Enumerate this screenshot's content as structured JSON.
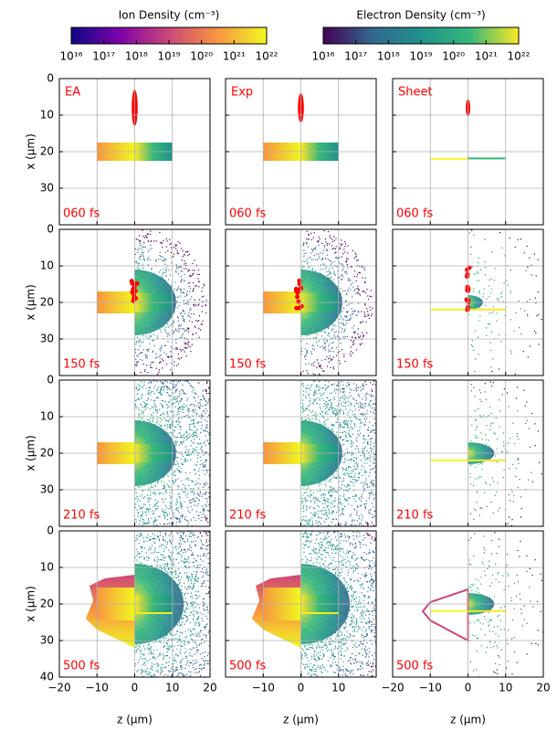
{
  "chart_data": {
    "type": "image-grid",
    "columns": [
      "EA",
      "Exp",
      "Sheet"
    ],
    "times": [
      "060 fs",
      "150 fs",
      "210 fs",
      "500 fs"
    ],
    "xlabel": "z (μm)",
    "ylabel": "x (μm)",
    "xlim": [
      -20,
      20
    ],
    "ylim": [
      0,
      40
    ],
    "xticks": [
      {
        "value": -20,
        "label": "−20"
      },
      {
        "value": -10,
        "label": "−10"
      },
      0,
      10,
      20
    ],
    "yticks": [
      0,
      10,
      20,
      30,
      40
    ],
    "grid": true,
    "label_color": "#ff0000",
    "colorbars": [
      {
        "label": "Ion Density (cm⁻³)",
        "colors": [
          "#0d0887",
          "#7e03a8",
          "#cc4778",
          "#f89540",
          "#f0f921"
        ]
      },
      {
        "label": "Electron Density (cm⁻³)",
        "colors": [
          "#440154",
          "#31688e",
          "#21918c",
          "#35b779",
          "#fde725"
        ]
      }
    ],
    "cscale": "log",
    "cticks": [
      {
        "value": 1e+16,
        "label": "10¹⁶"
      },
      {
        "value": 1e+17,
        "label": "10¹⁷"
      },
      {
        "value": 1e+18,
        "label": "10¹⁸"
      },
      {
        "value": 1e+19,
        "label": "10¹⁹"
      },
      {
        "value": 1e+20,
        "label": "10²⁰"
      },
      {
        "value": 1e+21,
        "label": "10²¹"
      },
      {
        "value": 1e+22,
        "label": "10²²"
      }
    ]
  }
}
